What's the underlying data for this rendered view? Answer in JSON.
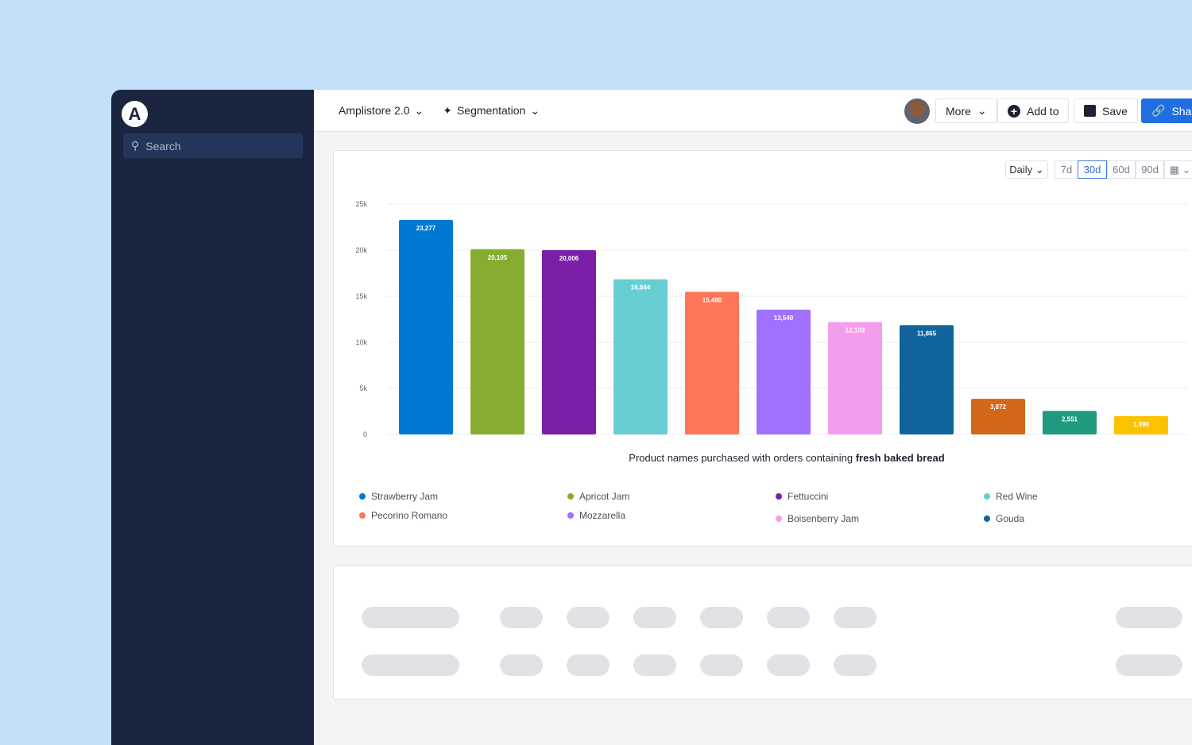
{
  "sidebar": {
    "search_placeholder": "Search"
  },
  "topbar": {
    "project": "Amplistore 2.0",
    "chart_type": "Segmentation",
    "more": "More",
    "add_to": "Add to",
    "save": "Save",
    "share": "Shar"
  },
  "controls": {
    "interval": "Daily",
    "ranges": [
      "7d",
      "30d",
      "60d",
      "90d"
    ],
    "selected_range": "30d"
  },
  "chart_data": {
    "type": "bar",
    "title": "",
    "xlabel_prefix": "Product names purchased with orders containing ",
    "xlabel_bold": "fresh baked bread",
    "ylim": [
      0,
      25000
    ],
    "yticks": [
      "0",
      "5k",
      "10k",
      "15k",
      "20k",
      "25k"
    ],
    "grid": true,
    "categories": [
      "Strawberry Jam",
      "Apricot Jam",
      "Fettuccini",
      "Red Wine",
      "Pecorino Romano",
      "Mozzarella",
      "Boisenberry Jam",
      "Gouda",
      "",
      "",
      ""
    ],
    "values": [
      23277,
      20105,
      20006,
      16844,
      15480,
      13540,
      12193,
      11865,
      3872,
      2551,
      1998
    ],
    "labels": [
      "23,277",
      "20,105",
      "20,006",
      "16,844",
      "15,480",
      "13,540",
      "12,193",
      "11,865",
      "3,872",
      "2,551",
      "1,998"
    ],
    "colors": [
      "#0079d4",
      "#86ad2f",
      "#7b1fa8",
      "#67cfd3",
      "#ff7557",
      "#a070ff",
      "#f59ded",
      "#10649b",
      "#d2691a",
      "#1f9a7e",
      "#fbc200"
    ],
    "legend": [
      "Strawberry Jam",
      "Apricot Jam",
      "Fettuccini",
      "Red Wine",
      "Pecorino Romano",
      "Mozzarella",
      "Boisenberry Jam",
      "Gouda"
    ],
    "legend_placement": "bottom"
  }
}
